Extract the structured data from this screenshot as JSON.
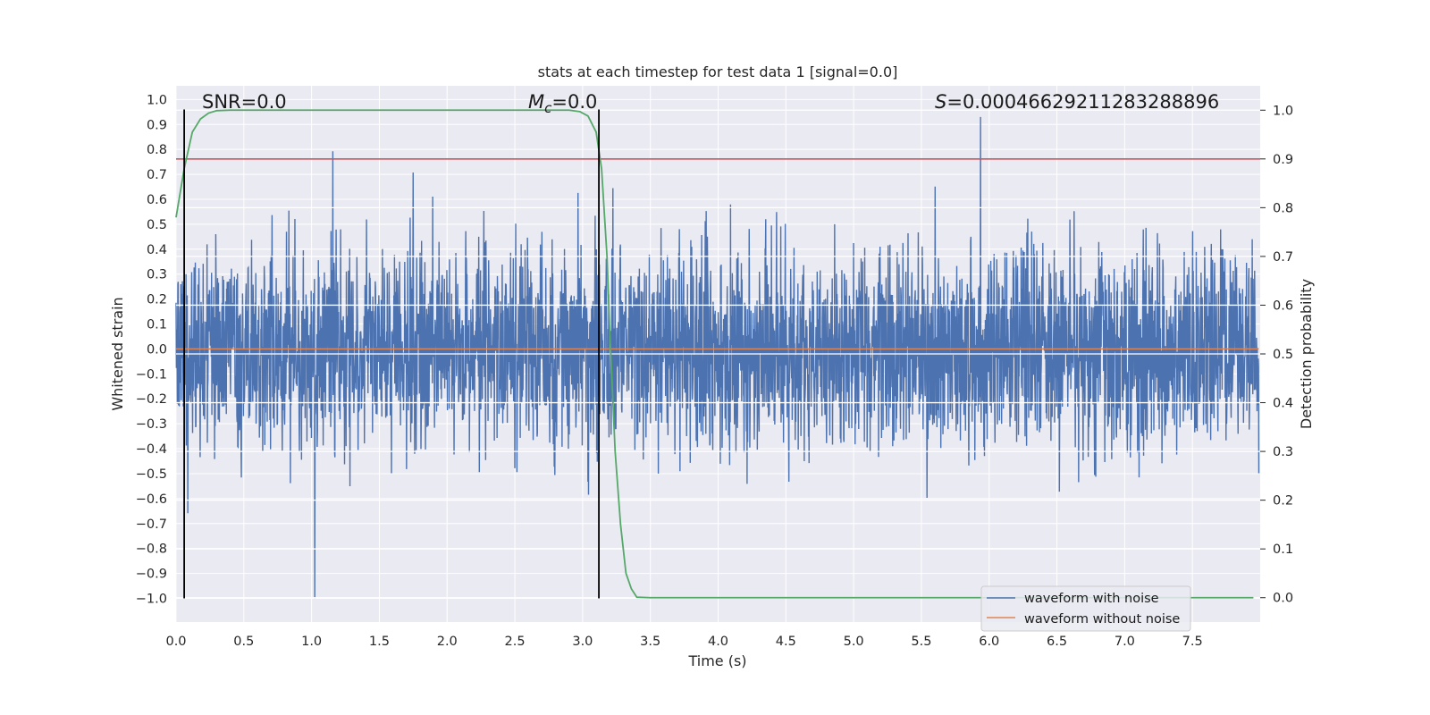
{
  "chart_data": {
    "type": "line",
    "title": "stats at each timestep for test data 1 [signal=0.0]",
    "xlabel": "Time (s)",
    "ylabel": "Whitened strain",
    "y2label": "Detection probability",
    "xlim": [
      0.0,
      8.0
    ],
    "ylim": [
      -1.095,
      1.055
    ],
    "y2lim": [
      -0.05,
      1.05
    ],
    "xticks": [
      "0.0",
      "0.5",
      "1.0",
      "1.5",
      "2.0",
      "2.5",
      "3.0",
      "3.5",
      "4.0",
      "4.5",
      "5.0",
      "5.5",
      "6.0",
      "6.5",
      "7.0",
      "7.5"
    ],
    "xtick_values": [
      0.0,
      0.5,
      1.0,
      1.5,
      2.0,
      2.5,
      3.0,
      3.5,
      4.0,
      4.5,
      5.0,
      5.5,
      6.0,
      6.5,
      7.0,
      7.5
    ],
    "yticks": [
      "−1.0",
      "−0.9",
      "−0.8",
      "−0.7",
      "−0.6",
      "−0.5",
      "−0.4",
      "−0.3",
      "−0.2",
      "−0.1",
      "0.0",
      "0.1",
      "0.2",
      "0.3",
      "0.4",
      "0.5",
      "0.6",
      "0.7",
      "0.8",
      "0.9",
      "1.0"
    ],
    "ytick_values": [
      -1.0,
      -0.9,
      -0.8,
      -0.7,
      -0.6,
      -0.5,
      -0.4,
      -0.3,
      -0.2,
      -0.1,
      0.0,
      0.1,
      0.2,
      0.3,
      0.4,
      0.5,
      0.6,
      0.7,
      0.8,
      0.9,
      1.0
    ],
    "y2ticks": [
      "0.0",
      "0.1",
      "0.2",
      "0.3",
      "0.4",
      "0.5",
      "0.6",
      "0.7",
      "0.8",
      "0.9",
      "1.0"
    ],
    "y2tick_values": [
      0.0,
      0.1,
      0.2,
      0.3,
      0.4,
      0.5,
      0.6,
      0.7,
      0.8,
      0.9,
      1.0
    ],
    "series": [
      {
        "name": "waveform with noise",
        "color": "#4c72b0",
        "description": "noise-dominated whitened strain, mostly within about ±0.4, peaks near 0.93 and −1.0",
        "seed": 20240611,
        "x_range": [
          0.0,
          7.99
        ]
      },
      {
        "name": "waveform without noise",
        "color": "#dd8452",
        "x": [
          0.0,
          7.99
        ],
        "values": [
          0.0,
          0.0
        ]
      },
      {
        "name": "detection probability",
        "color": "#55a868",
        "axis": "right",
        "x": [
          0.0,
          0.06,
          0.12,
          0.18,
          0.24,
          0.3,
          0.4,
          0.6,
          1.0,
          2.0,
          2.9,
          2.98,
          3.04,
          3.1,
          3.14,
          3.18,
          3.2,
          3.24,
          3.28,
          3.32,
          3.36,
          3.4,
          3.5,
          4.0,
          5.0,
          6.0,
          7.0,
          7.95
        ],
        "values": [
          0.78,
          0.88,
          0.955,
          0.982,
          0.994,
          0.999,
          1.0,
          1.0,
          1.0,
          1.0,
          1.0,
          0.997,
          0.988,
          0.955,
          0.88,
          0.7,
          0.55,
          0.3,
          0.15,
          0.05,
          0.018,
          0.001,
          0.0,
          0.0,
          0.0,
          0.0,
          0.0,
          0.0
        ]
      }
    ],
    "threshold": {
      "axis": "right",
      "value": 0.9,
      "color": "#c44e52"
    },
    "vlines": [
      {
        "x": 0.06,
        "y_from": -1.0,
        "y_to": 0.96,
        "color": "#000000"
      },
      {
        "x": 3.12,
        "y_from": -1.0,
        "y_to": 0.96,
        "color": "#000000"
      }
    ],
    "annotations": {
      "snr": "SNR=0.0",
      "mc_symbol": "M",
      "mc_sub": "c",
      "mc_value": "=0.0",
      "s_symbol": "S",
      "s_value": "=0.00046629211283288896"
    },
    "legend": {
      "position": "lower-right",
      "entries": [
        "waveform with noise",
        "waveform without noise"
      ]
    },
    "grid": true,
    "background": "#eaeaf2"
  }
}
